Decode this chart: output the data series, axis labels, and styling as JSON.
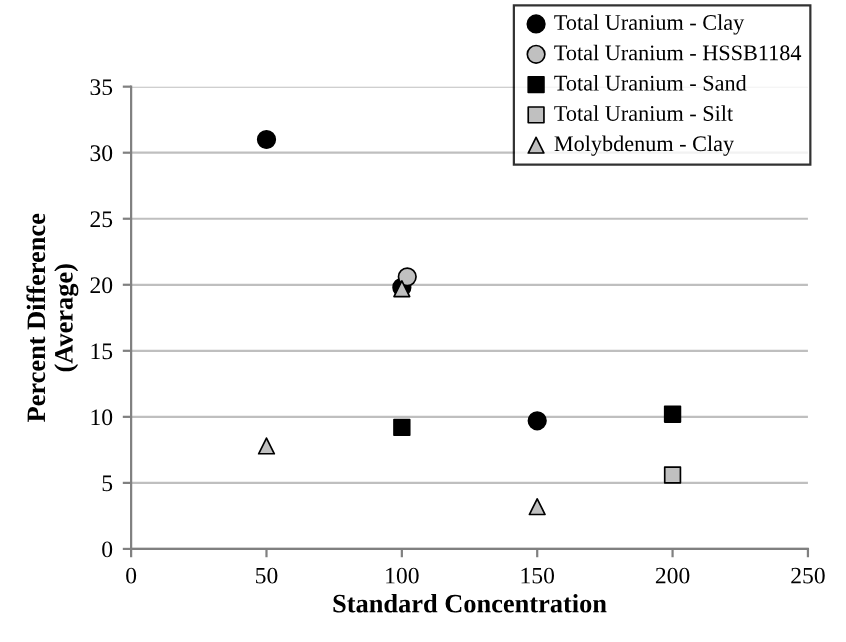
{
  "chart_data": {
    "type": "scatter",
    "xlabel": "Standard Concentration",
    "ylabel": "Percent Difference\n(Average)",
    "xlim": [
      0,
      250
    ],
    "xticks": [
      0,
      50,
      100,
      150,
      200,
      250
    ],
    "ylim": [
      0,
      35
    ],
    "yticks": [
      0,
      5,
      10,
      15,
      20,
      25,
      30,
      35
    ],
    "grid": "y",
    "legend": "top right",
    "series": [
      {
        "name": "Total Uranium - Clay",
        "color": "#000000",
        "marker": "circle",
        "x": [
          50,
          100,
          150
        ],
        "values": [
          31.0,
          19.8,
          9.7
        ]
      },
      {
        "name": "Total Uranium - HSSB1184",
        "color": "#c0c0c0",
        "marker": "circle",
        "x": [
          102
        ],
        "values": [
          20.6
        ]
      },
      {
        "name": "Total Uranium - Sand",
        "color": "#000000",
        "marker": "square",
        "x": [
          100,
          200
        ],
        "values": [
          9.2,
          10.2
        ]
      },
      {
        "name": "Total Uranium - Silt",
        "color": "#c0c0c0",
        "marker": "square",
        "x": [
          200
        ],
        "values": [
          5.6
        ]
      },
      {
        "name": "Molybdenum - Clay",
        "color": "#c0c0c0",
        "marker": "triangle",
        "x": [
          50,
          100,
          150
        ],
        "values": [
          7.8,
          19.7,
          3.2
        ]
      }
    ]
  }
}
